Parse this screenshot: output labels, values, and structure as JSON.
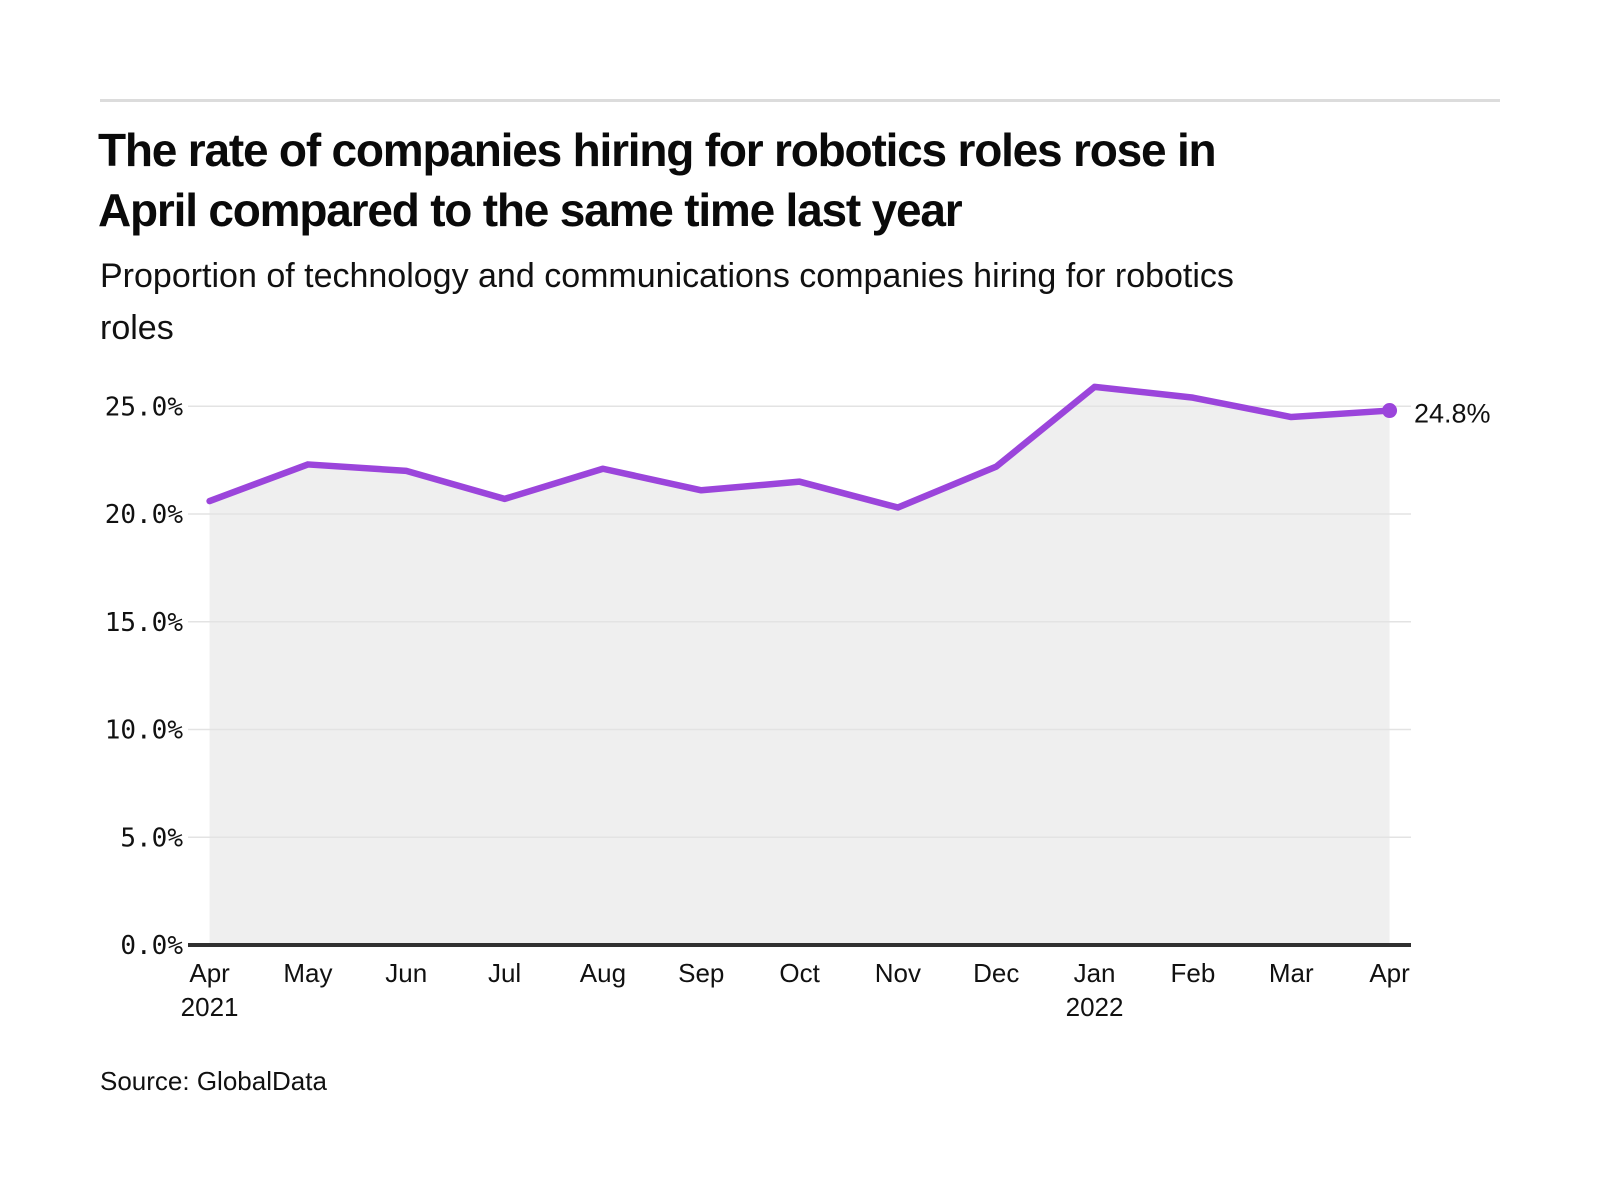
{
  "page": {
    "title": "The rate of companies hiring for robotics roles rose in April compared to the same time last year",
    "title_lines": [
      "The rate of companies hiring for robotics roles rose in",
      "April compared to the same time last year"
    ],
    "subtitle": "Proportion of technology and communications companies hiring for robotics roles",
    "subtitle_lines": [
      "Proportion of technology and communications companies hiring for robotics",
      "roles"
    ],
    "source": "Source: GlobalData"
  },
  "chart_data": {
    "type": "area",
    "title": "The rate of companies hiring for robotics roles rose in April compared to the same time last year",
    "subtitle": "Proportion of technology and communications companies hiring for robotics roles",
    "categories": [
      "Apr 2021",
      "May",
      "Jun",
      "Jul",
      "Aug",
      "Sep",
      "Oct",
      "Nov",
      "Dec",
      "Jan 2022",
      "Feb",
      "Mar",
      "Apr"
    ],
    "x_labels": [
      "Apr",
      "May",
      "Jun",
      "Jul",
      "Aug",
      "Sep",
      "Oct",
      "Nov",
      "Dec",
      "Jan",
      "Feb",
      "Mar",
      "Apr"
    ],
    "x_year_labels": [
      {
        "index": 0,
        "label": "2021"
      },
      {
        "index": 9,
        "label": "2022"
      }
    ],
    "values": [
      20.6,
      22.3,
      22.0,
      20.7,
      22.1,
      21.1,
      21.5,
      20.3,
      22.2,
      25.9,
      25.4,
      24.5,
      24.8
    ],
    "unit": "%",
    "ylabel": "",
    "xlabel": "",
    "y_ticks": [
      0,
      5,
      10,
      15,
      20,
      25
    ],
    "y_tick_labels": [
      "0.0%",
      "5.0%",
      "10.0%",
      "15.0%",
      "20.0%",
      "25.0%"
    ],
    "ylim": [
      0,
      26.5
    ],
    "grid": "horizontal",
    "legend": "none",
    "last_point_label": "24.8%",
    "colors": {
      "line": "#9B45DB",
      "area_fill": "#EFEFEF",
      "gridline": "#E3E3E3",
      "axis_line": "#303030",
      "tick_text": "#111111",
      "annotation_text": "#111111",
      "rule": "#DCDCDC"
    }
  }
}
